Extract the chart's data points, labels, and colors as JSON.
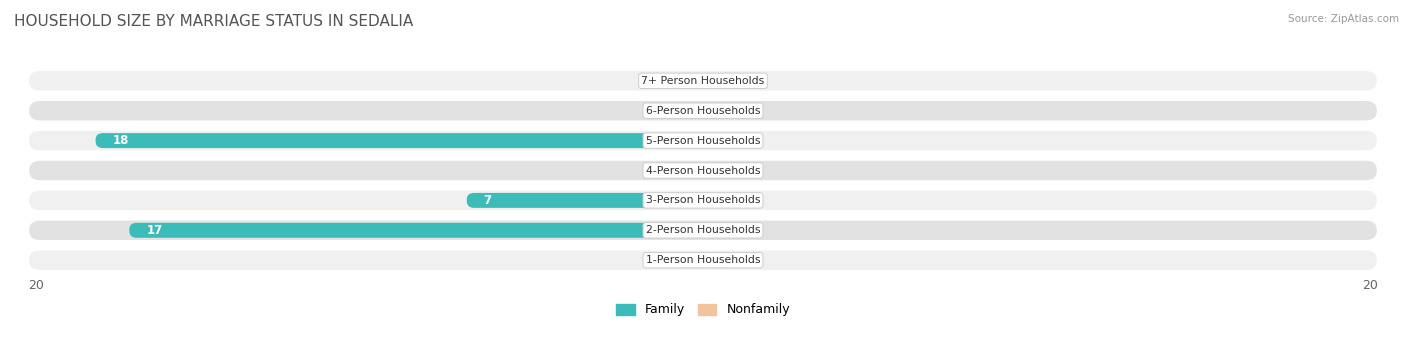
{
  "title": "HOUSEHOLD SIZE BY MARRIAGE STATUS IN SEDALIA",
  "source": "Source: ZipAtlas.com",
  "categories": [
    "7+ Person Households",
    "6-Person Households",
    "5-Person Households",
    "4-Person Households",
    "3-Person Households",
    "2-Person Households",
    "1-Person Households"
  ],
  "family_values": [
    0,
    0,
    18,
    0,
    7,
    17,
    0
  ],
  "nonfamily_values": [
    0,
    0,
    0,
    0,
    0,
    0,
    0
  ],
  "family_color": "#3BBCB8",
  "nonfamily_color": "#F2C49B",
  "row_bg_light": "#F0F0F0",
  "row_bg_dark": "#E2E2E2",
  "xlim": 20,
  "title_fontsize": 11,
  "label_fontsize": 8,
  "legend_labels": [
    "Family",
    "Nonfamily"
  ],
  "background_color": "#FFFFFF"
}
